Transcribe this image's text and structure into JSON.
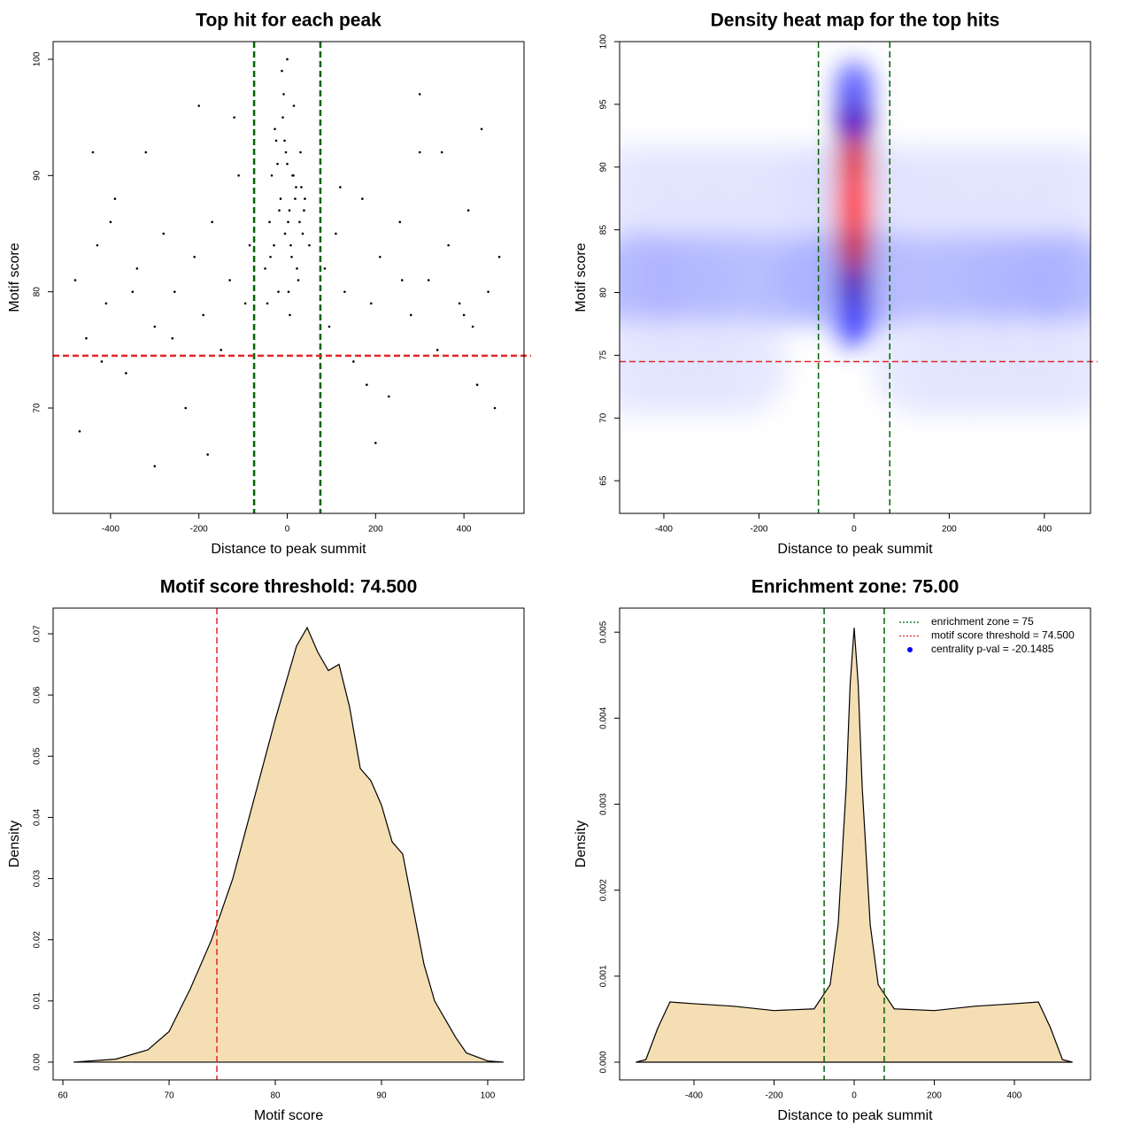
{
  "chart_data": [
    {
      "type": "scatter",
      "title": "Top hit for each peak",
      "x_label": "Distance to peak summit",
      "y_label": "Motif score",
      "x": [
        -480,
        -455,
        -430,
        -410,
        -390,
        -365,
        -340,
        -320,
        -300,
        -280,
        -255,
        -230,
        -210,
        -190,
        -170,
        -150,
        -130,
        -110,
        -95,
        -85,
        85,
        95,
        110,
        130,
        150,
        170,
        190,
        210,
        230,
        255,
        280,
        300,
        320,
        340,
        365,
        390,
        410,
        430,
        455,
        480,
        -470,
        -440,
        -400,
        -350,
        -260,
        -180,
        -120,
        120,
        180,
        260,
        350,
        400,
        440,
        470,
        -300,
        -200,
        200,
        300,
        -420,
        420,
        -50,
        -40,
        -35,
        -30,
        -25,
        -20,
        -15,
        -10,
        -5,
        0,
        5,
        10,
        15,
        20,
        25,
        30,
        35,
        40,
        50,
        -45,
        -28,
        -18,
        -8,
        2,
        12,
        22,
        32,
        -12,
        8,
        -3,
        3,
        18,
        -22,
        28,
        -38,
        38,
        0,
        -6,
        6,
        14
      ],
      "y": [
        81,
        76,
        84,
        79,
        88,
        73,
        82,
        92,
        77,
        85,
        80,
        70,
        83,
        78,
        86,
        75,
        81,
        90,
        79,
        84,
        82,
        77,
        85,
        80,
        74,
        88,
        79,
        83,
        71,
        86,
        78,
        92,
        81,
        75,
        84,
        79,
        87,
        72,
        80,
        83,
        68,
        92,
        86,
        80,
        76,
        66,
        95,
        89,
        72,
        81,
        92,
        78,
        94,
        70,
        65,
        96,
        67,
        97,
        74,
        77,
        82,
        86,
        90,
        84,
        93,
        80,
        88,
        95,
        85,
        91,
        87,
        83,
        96,
        89,
        81,
        92,
        85,
        88,
        84,
        79,
        94,
        87,
        97,
        86,
        90,
        82,
        89,
        99,
        84,
        92,
        80,
        88,
        91,
        86,
        83,
        87,
        100,
        93,
        78,
        90
      ],
      "color": "#000000",
      "xlim": [
        -530,
        536
      ],
      "ylim": [
        60.94,
        101.52
      ],
      "xticks": [
        -400,
        -200,
        0,
        200,
        400
      ],
      "yticks": [
        70,
        80,
        90,
        100
      ],
      "vlines": {
        "values": [
          -75,
          75
        ],
        "color": "#006400"
      },
      "hlines": {
        "values": [
          74.5
        ],
        "color": "#e32626"
      }
    },
    {
      "type": "heatmap",
      "title": "Density heat map for the top hits",
      "x_label": "Distance to peak summit",
      "y_label": "Motif score",
      "x": [
        -450,
        -350,
        -250,
        -150,
        -50,
        50,
        150,
        250,
        350,
        450,
        -450,
        -350,
        -250,
        -150,
        -50,
        50,
        150,
        250,
        350,
        450,
        -450,
        -350,
        -250,
        150,
        250,
        350,
        450,
        0,
        0,
        0,
        0,
        0,
        0,
        0
      ],
      "y": [
        88,
        88,
        88,
        88,
        88,
        88,
        88,
        88,
        88,
        88,
        81,
        81,
        81,
        81,
        81,
        81,
        81,
        81,
        81,
        81,
        74,
        74,
        74,
        74,
        74,
        74,
        74,
        96,
        78,
        93,
        81,
        90,
        84,
        87
      ],
      "values": [
        0.1,
        0.1,
        0.1,
        0.1,
        0.12,
        0.12,
        0.1,
        0.1,
        0.1,
        0.1,
        0.3,
        0.28,
        0.26,
        0.25,
        0.3,
        0.3,
        0.25,
        0.26,
        0.28,
        0.3,
        0.1,
        0.1,
        0.1,
        0.1,
        0.1,
        0.1,
        0.1,
        0.45,
        0.5,
        0.7,
        0.7,
        0.95,
        0.9,
        1.0
      ],
      "xlim": [
        -493,
        497
      ],
      "ylim": [
        62.4,
        100
      ],
      "xticks": [
        -400,
        -200,
        0,
        200,
        400
      ],
      "yticks": [
        65,
        70,
        75,
        80,
        85,
        90,
        95,
        100
      ],
      "vlines": {
        "values": [
          -75,
          75
        ],
        "color": "#006400"
      },
      "hlines": {
        "values": [
          74.5
        ],
        "color": "#e32626"
      }
    },
    {
      "type": "density",
      "title": "Motif score threshold: 74.500",
      "x_label": "Motif score",
      "y_label": "Density",
      "x": [
        61,
        65,
        68,
        70,
        72,
        74,
        76,
        78,
        80,
        81,
        82,
        83,
        84,
        85,
        86,
        87,
        88,
        89,
        90,
        91,
        92,
        93,
        94,
        95,
        96,
        97,
        98,
        100,
        101.5
      ],
      "y": [
        0,
        0.0005,
        0.002,
        0.005,
        0.012,
        0.02,
        0.03,
        0.043,
        0.056,
        0.062,
        0.068,
        0.071,
        0.067,
        0.064,
        0.065,
        0.058,
        0.048,
        0.046,
        0.042,
        0.036,
        0.034,
        0.025,
        0.016,
        0.01,
        0.007,
        0.004,
        0.0015,
        0.0002,
        0
      ],
      "color": "#f5deb3",
      "xlim": [
        59.08,
        103.42
      ],
      "ylim": [
        -0.0029,
        0.0742
      ],
      "xticks": [
        60,
        70,
        80,
        90,
        100
      ],
      "yticks": [
        {
          "value": 0,
          "label": "0.00"
        },
        {
          "value": 0.01,
          "label": "0.01"
        },
        {
          "value": 0.02,
          "label": "0.02"
        },
        {
          "value": 0.03,
          "label": "0.03"
        },
        {
          "value": 0.04,
          "label": "0.04"
        },
        {
          "value": 0.05,
          "label": "0.05"
        },
        {
          "value": 0.06,
          "label": "0.06"
        },
        {
          "value": 0.07,
          "label": "0.07"
        }
      ],
      "vlines": {
        "values": [
          74.5
        ],
        "color": "#e32626"
      }
    },
    {
      "type": "density",
      "title": "Enrichment zone: 75.00",
      "x_label": "Distance to peak summit",
      "y_label": "Density",
      "x": [
        -545,
        -520,
        -490,
        -460,
        -400,
        -300,
        -200,
        -100,
        -60,
        -40,
        -20,
        -10,
        0,
        10,
        20,
        40,
        60,
        100,
        200,
        300,
        400,
        460,
        490,
        520,
        545
      ],
      "y": [
        0,
        3e-05,
        0.0004,
        0.0007,
        0.00068,
        0.00065,
        0.0006,
        0.00062,
        0.0009,
        0.0016,
        0.0032,
        0.0044,
        0.00505,
        0.0044,
        0.0032,
        0.0016,
        0.0009,
        0.00062,
        0.0006,
        0.00065,
        0.00068,
        0.0007,
        0.0004,
        3e-05,
        0
      ],
      "color": "#f5deb3",
      "xlim": [
        -585.6,
        590
      ],
      "ylim": [
        -0.000206,
        0.00528
      ],
      "xticks": [
        -400,
        -200,
        0,
        200,
        400
      ],
      "yticks": [
        {
          "value": 0,
          "label": "0.000"
        },
        {
          "value": 0.001,
          "label": "0.001"
        },
        {
          "value": 0.002,
          "label": "0.002"
        },
        {
          "value": 0.003,
          "label": "0.003"
        },
        {
          "value": 0.004,
          "label": "0.004"
        },
        {
          "value": 0.005,
          "label": "0.005"
        }
      ],
      "vlines": {
        "values": [
          -75,
          75
        ],
        "color": "#006400"
      },
      "legend": [
        {
          "label": "enrichment zone = 75",
          "color": "#006400",
          "style": "line"
        },
        {
          "label": "motif score threshold = 74.500",
          "color": "#e32626",
          "style": "line"
        },
        {
          "label": "centrality p-val = -20.1485",
          "color": "#0000ff",
          "style": "point"
        }
      ]
    }
  ]
}
